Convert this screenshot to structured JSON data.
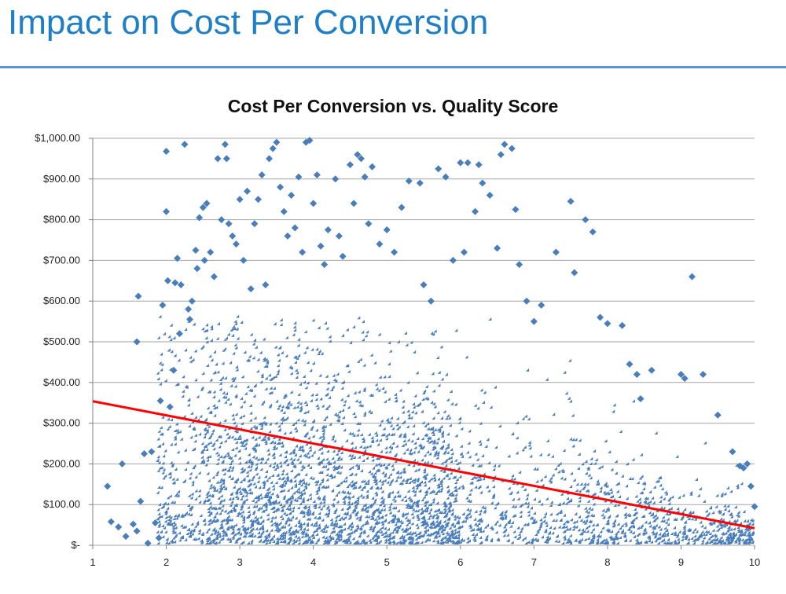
{
  "slide": {
    "title": "Impact on Cost Per Conversion"
  },
  "chart_data": {
    "type": "scatter",
    "title": "Cost Per Conversion vs. Quality Score",
    "xlabel": "",
    "ylabel": "",
    "xlim": [
      1,
      10
    ],
    "ylim": [
      0,
      1000
    ],
    "x_ticks": [
      1,
      2,
      3,
      4,
      5,
      6,
      7,
      8,
      9,
      10
    ],
    "x_tick_labels": [
      "1",
      "2",
      "3",
      "4",
      "5",
      "6",
      "7",
      "8",
      "9",
      "10"
    ],
    "y_ticks": [
      0,
      100,
      200,
      300,
      400,
      500,
      600,
      700,
      800,
      900,
      1000
    ],
    "y_tick_labels": [
      "$-",
      "$100.00",
      "$200.00",
      "$300.00",
      "$400.00",
      "$500.00",
      "$600.00",
      "$700.00",
      "$800.00",
      "$900.00",
      "$1,000.00"
    ],
    "grid": "horizontal",
    "legend": "none",
    "marker": "diamond",
    "colors": {
      "points": "#4a7ebb",
      "trendline": "#ff0000",
      "grid": "#a6a6a6",
      "title": "#1f7fc6",
      "rule": "#5d93cf"
    },
    "trendline": {
      "type": "linear",
      "x": [
        1,
        10
      ],
      "y": [
        354,
        42
      ]
    },
    "series": [
      {
        "name": "Cost per conversion",
        "points": [
          [
            1.2,
            145
          ],
          [
            1.25,
            58
          ],
          [
            1.35,
            45
          ],
          [
            1.4,
            200
          ],
          [
            1.45,
            22
          ],
          [
            1.55,
            52
          ],
          [
            1.6,
            35
          ],
          [
            1.6,
            500
          ],
          [
            1.62,
            612
          ],
          [
            1.65,
            108
          ],
          [
            1.7,
            225
          ],
          [
            1.75,
            5
          ],
          [
            1.8,
            230
          ],
          [
            1.85,
            55
          ],
          [
            1.9,
            18
          ],
          [
            1.92,
            355
          ],
          [
            1.95,
            590
          ],
          [
            2.0,
            968
          ],
          [
            2.0,
            820
          ],
          [
            2.02,
            650
          ],
          [
            2.05,
            340
          ],
          [
            2.1,
            430
          ],
          [
            2.12,
            645
          ],
          [
            2.15,
            705
          ],
          [
            2.18,
            520
          ],
          [
            2.2,
            640
          ],
          [
            2.25,
            985
          ],
          [
            2.3,
            580
          ],
          [
            2.32,
            555
          ],
          [
            2.35,
            600
          ],
          [
            2.4,
            725
          ],
          [
            2.42,
            680
          ],
          [
            2.45,
            805
          ],
          [
            2.5,
            830
          ],
          [
            2.52,
            700
          ],
          [
            2.55,
            840
          ],
          [
            2.6,
            720
          ],
          [
            2.65,
            660
          ],
          [
            2.7,
            950
          ],
          [
            2.75,
            800
          ],
          [
            2.8,
            985
          ],
          [
            2.82,
            950
          ],
          [
            2.85,
            790
          ],
          [
            2.9,
            760
          ],
          [
            2.95,
            740
          ],
          [
            3.0,
            850
          ],
          [
            3.05,
            700
          ],
          [
            3.1,
            870
          ],
          [
            3.15,
            630
          ],
          [
            3.2,
            790
          ],
          [
            3.25,
            850
          ],
          [
            3.3,
            910
          ],
          [
            3.35,
            640
          ],
          [
            3.4,
            950
          ],
          [
            3.45,
            975
          ],
          [
            3.5,
            990
          ],
          [
            3.55,
            880
          ],
          [
            3.6,
            820
          ],
          [
            3.65,
            760
          ],
          [
            3.7,
            860
          ],
          [
            3.75,
            780
          ],
          [
            3.8,
            905
          ],
          [
            3.85,
            720
          ],
          [
            3.9,
            990
          ],
          [
            3.95,
            995
          ],
          [
            4.0,
            840
          ],
          [
            4.05,
            910
          ],
          [
            4.1,
            735
          ],
          [
            4.15,
            690
          ],
          [
            4.2,
            775
          ],
          [
            4.3,
            900
          ],
          [
            4.35,
            760
          ],
          [
            4.4,
            710
          ],
          [
            4.5,
            935
          ],
          [
            4.55,
            840
          ],
          [
            4.6,
            960
          ],
          [
            4.65,
            950
          ],
          [
            4.7,
            905
          ],
          [
            4.75,
            790
          ],
          [
            4.8,
            930
          ],
          [
            4.9,
            740
          ],
          [
            5.0,
            775
          ],
          [
            5.1,
            720
          ],
          [
            5.2,
            830
          ],
          [
            5.3,
            895
          ],
          [
            5.45,
            890
          ],
          [
            5.5,
            640
          ],
          [
            5.6,
            600
          ],
          [
            5.7,
            925
          ],
          [
            5.8,
            905
          ],
          [
            5.9,
            700
          ],
          [
            6.0,
            940
          ],
          [
            6.05,
            720
          ],
          [
            6.1,
            940
          ],
          [
            6.2,
            820
          ],
          [
            6.25,
            935
          ],
          [
            6.3,
            890
          ],
          [
            6.4,
            860
          ],
          [
            6.5,
            730
          ],
          [
            6.55,
            960
          ],
          [
            6.6,
            985
          ],
          [
            6.7,
            975
          ],
          [
            6.75,
            825
          ],
          [
            6.8,
            690
          ],
          [
            6.9,
            600
          ],
          [
            7.0,
            550
          ],
          [
            7.1,
            590
          ],
          [
            7.3,
            720
          ],
          [
            7.5,
            845
          ],
          [
            7.55,
            670
          ],
          [
            7.7,
            800
          ],
          [
            7.8,
            770
          ],
          [
            7.9,
            560
          ],
          [
            8.0,
            545
          ],
          [
            8.2,
            540
          ],
          [
            8.3,
            445
          ],
          [
            8.4,
            420
          ],
          [
            8.45,
            360
          ],
          [
            8.6,
            430
          ],
          [
            9.0,
            420
          ],
          [
            9.05,
            410
          ],
          [
            9.15,
            660
          ],
          [
            9.3,
            420
          ],
          [
            9.5,
            320
          ],
          [
            9.7,
            230
          ],
          [
            9.8,
            195
          ],
          [
            9.85,
            190
          ],
          [
            9.9,
            200
          ],
          [
            9.95,
            145
          ],
          [
            10.0,
            95
          ]
        ]
      }
    ]
  }
}
